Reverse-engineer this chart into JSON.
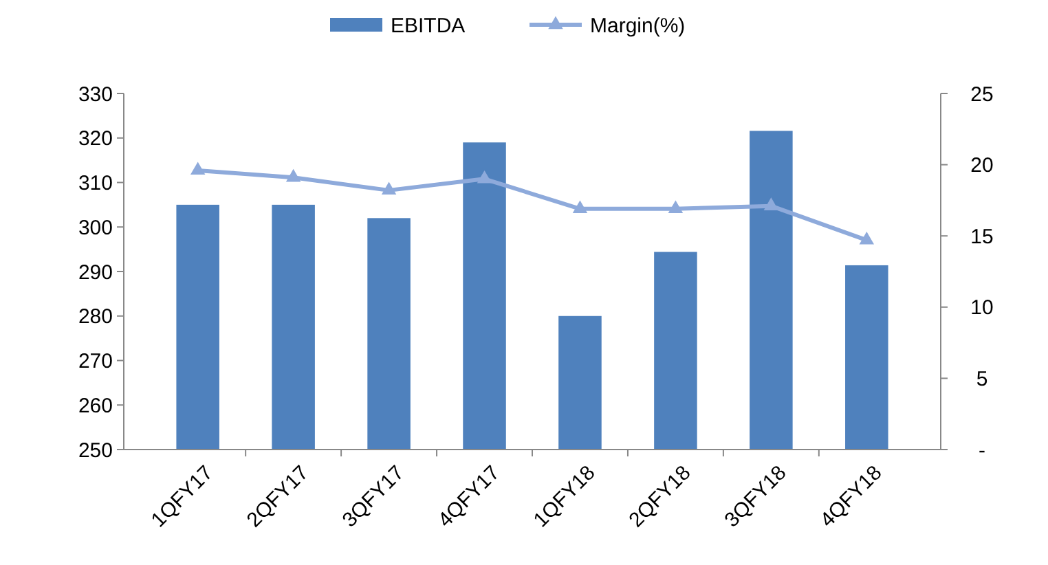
{
  "chart_data": {
    "type": "bar",
    "categories": [
      "1QFY17",
      "2QFY17",
      "3QFY17",
      "4QFY17",
      "1QFY18",
      "2QFY18",
      "3QFY18",
      "4QFY18"
    ],
    "series": [
      {
        "name": "EBITDA",
        "color": "#4f81bd",
        "values": [
          305,
          305,
          302,
          319,
          280,
          294.4,
          321.6,
          291.4
        ]
      },
      {
        "name": "Margin(%)",
        "type": "line",
        "axis": "y2",
        "color": "#8eaadb",
        "marker": "triangle",
        "values": [
          19.6,
          19.1,
          18.2,
          19.0,
          16.9,
          16.9,
          17.1,
          14.7
        ]
      }
    ],
    "ylim": [
      250,
      330
    ],
    "yticks": [
      250,
      260,
      270,
      280,
      290,
      300,
      310,
      320,
      330
    ],
    "y2lim": [
      0,
      25
    ],
    "y2ticks": [
      {
        "value": 0,
        "label": "-"
      },
      5,
      10,
      15,
      20,
      25
    ],
    "legend": "top",
    "grid": false
  }
}
